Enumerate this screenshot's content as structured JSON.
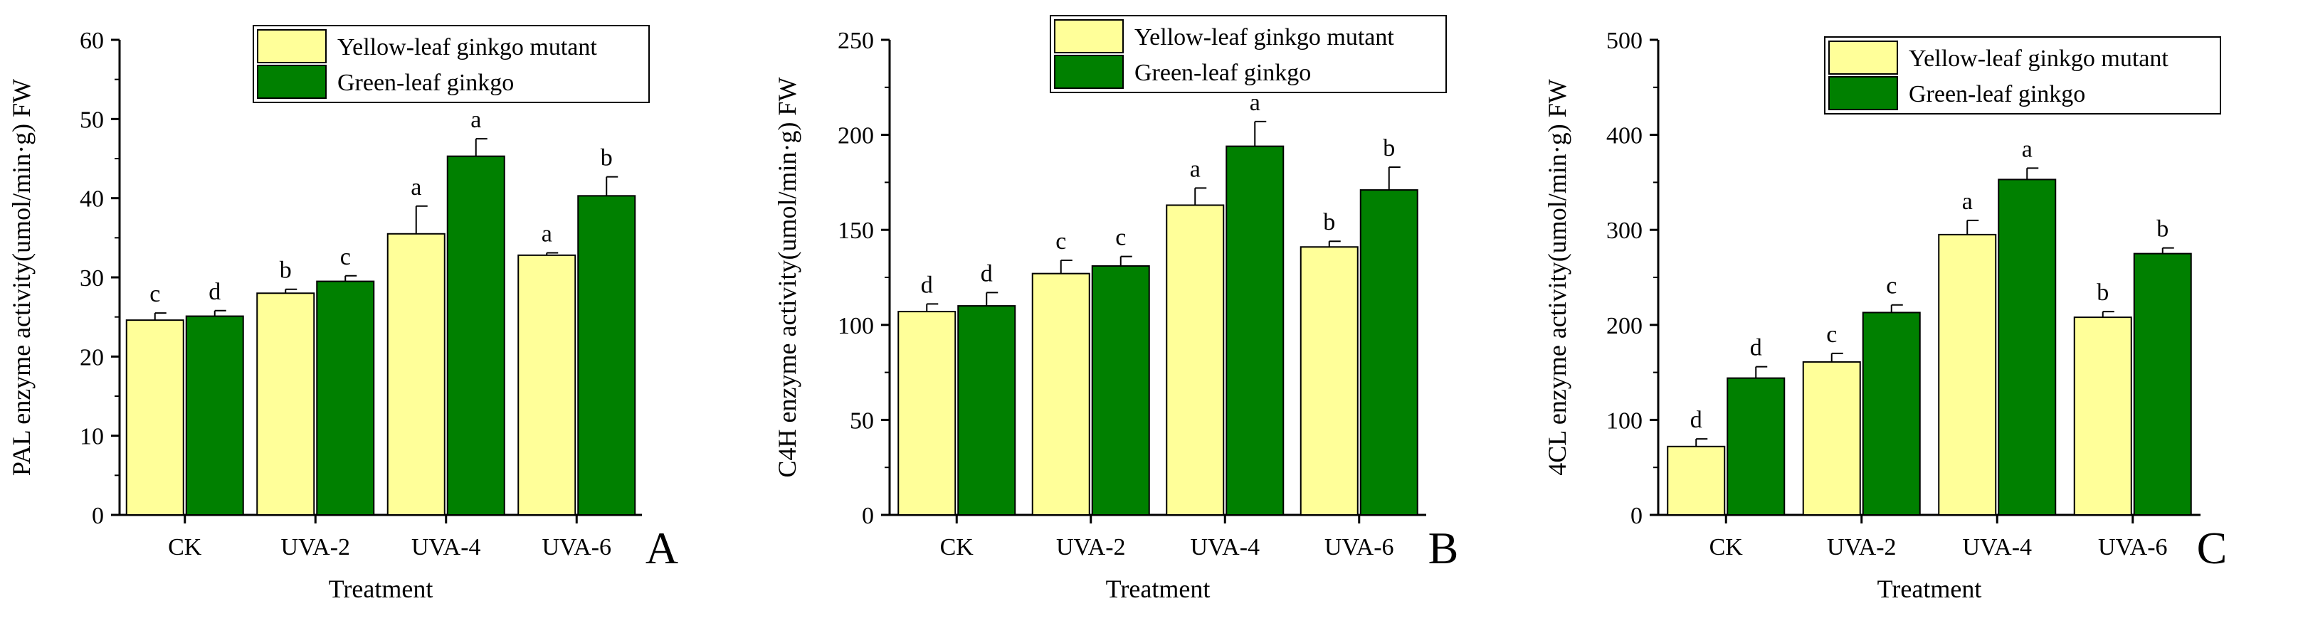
{
  "colors": {
    "yellow": "#ffff99",
    "green": "#008000",
    "axis": "#000000",
    "background": "#ffffff"
  },
  "chart_data": [
    {
      "type": "bar",
      "panel_label": "A",
      "xlabel": "Treatment",
      "ylabel": "PAL enzyme activity(umol/min·g) FW",
      "ylim": [
        0,
        60
      ],
      "yticks": [
        0,
        10,
        20,
        30,
        40,
        50,
        60
      ],
      "categories": [
        "CK",
        "UVA-2",
        "UVA-4",
        "UVA-6"
      ],
      "legend_position": "top-right",
      "series": [
        {
          "name": "Yellow-leaf ginkgo mutant",
          "color": "#ffff99",
          "values": [
            24.6,
            28.0,
            35.5,
            32.8
          ],
          "errors": [
            0.9,
            0.5,
            3.5,
            0.3
          ],
          "letters": [
            "c",
            "b",
            "a",
            "a"
          ]
        },
        {
          "name": "Green-leaf ginkgo",
          "color": "#008000",
          "values": [
            25.1,
            29.5,
            45.3,
            40.3
          ],
          "errors": [
            0.7,
            0.7,
            2.2,
            2.4
          ],
          "letters": [
            "d",
            "c",
            "a",
            "b"
          ]
        }
      ]
    },
    {
      "type": "bar",
      "panel_label": "B",
      "xlabel": "Treatment",
      "ylabel": "C4H enzyme activity(umol/min·g) FW",
      "ylim": [
        0,
        250
      ],
      "yticks": [
        0,
        50,
        100,
        150,
        200,
        250
      ],
      "categories": [
        "CK",
        "UVA-2",
        "UVA-4",
        "UVA-6"
      ],
      "legend_position": "top",
      "series": [
        {
          "name": "Yellow-leaf ginkgo mutant",
          "color": "#ffff99",
          "values": [
            107,
            127,
            163,
            141
          ],
          "errors": [
            4,
            7,
            9,
            3
          ],
          "letters": [
            "d",
            "c",
            "a",
            "b"
          ]
        },
        {
          "name": "Green-leaf ginkgo",
          "color": "#008000",
          "values": [
            110,
            131,
            194,
            171
          ],
          "errors": [
            7,
            5,
            13,
            12
          ],
          "letters": [
            "d",
            "c",
            "a",
            "b"
          ]
        }
      ]
    },
    {
      "type": "bar",
      "panel_label": "C",
      "xlabel": "Treatment",
      "ylabel": "4CL enzyme activity(umol/min·g) FW",
      "ylim": [
        0,
        500
      ],
      "yticks": [
        0,
        100,
        200,
        300,
        400,
        500
      ],
      "categories": [
        "CK",
        "UVA-2",
        "UVA-4",
        "UVA-6"
      ],
      "legend_position": "top-right",
      "series": [
        {
          "name": "Yellow-leaf ginkgo mutant",
          "color": "#ffff99",
          "values": [
            72,
            161,
            295,
            208
          ],
          "errors": [
            8,
            9,
            15,
            6
          ],
          "letters": [
            "d",
            "c",
            "a",
            "b"
          ]
        },
        {
          "name": "Green-leaf ginkgo",
          "color": "#008000",
          "values": [
            144,
            213,
            353,
            275
          ],
          "errors": [
            12,
            8,
            12,
            6
          ],
          "letters": [
            "d",
            "c",
            "a",
            "b"
          ]
        }
      ]
    }
  ]
}
